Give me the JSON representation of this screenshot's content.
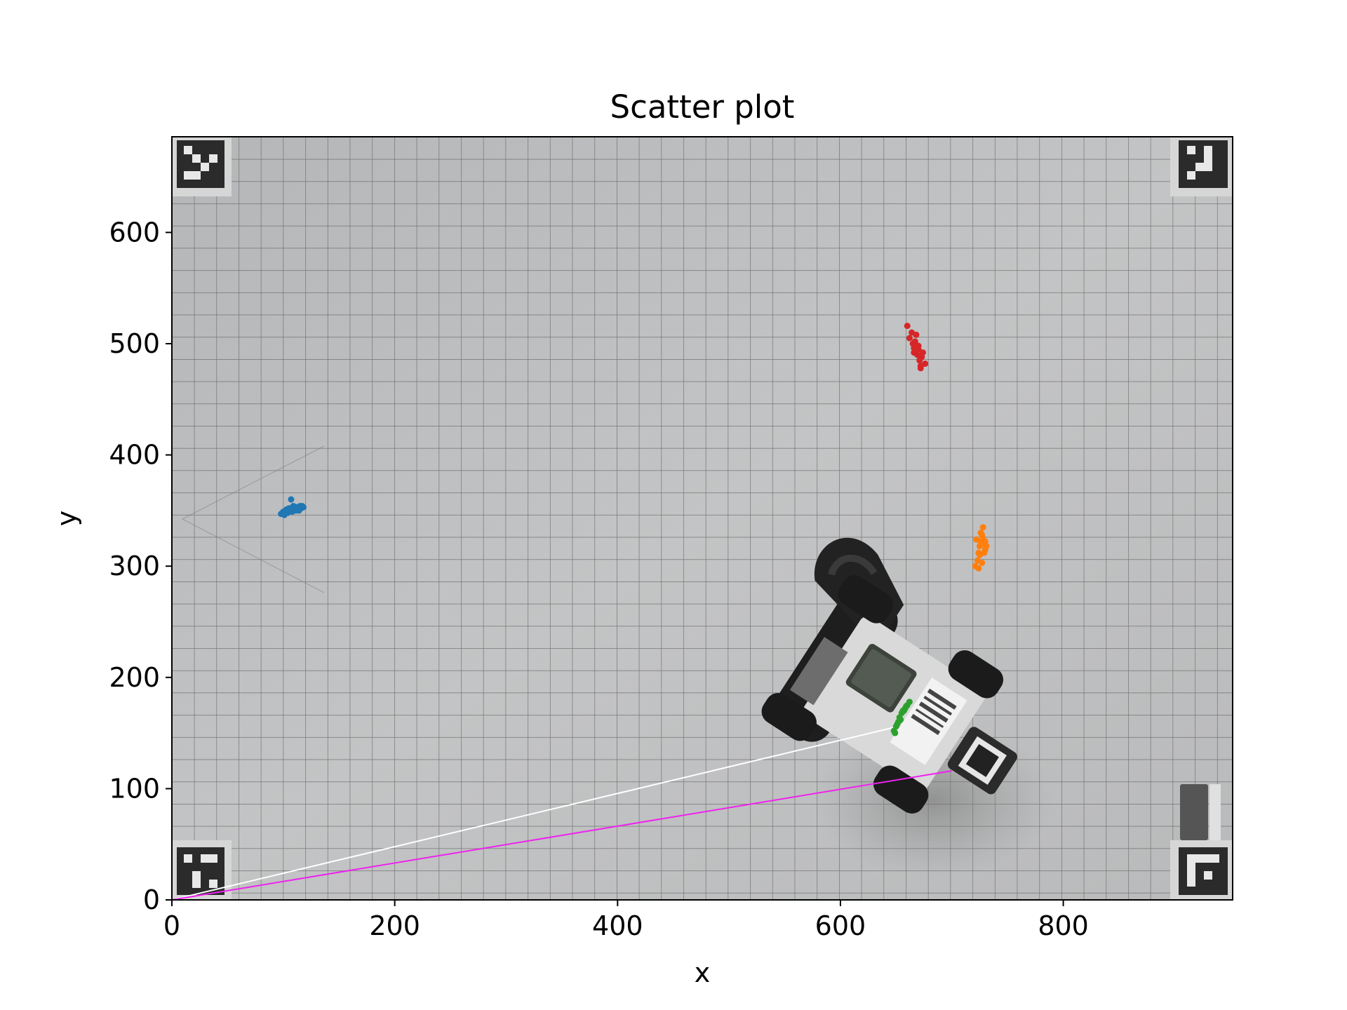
{
  "chart_data": {
    "type": "scatter",
    "title": "Scatter plot",
    "xlabel": "x",
    "ylabel": "y",
    "xlim": [
      0,
      952
    ],
    "ylim": [
      0,
      686
    ],
    "x_ticks": [
      0,
      200,
      400,
      600,
      800
    ],
    "y_ticks": [
      0,
      100,
      200,
      300,
      400,
      500,
      600
    ],
    "background": "photograph of a grid-paper floor with a LEGO EV3 robot and four fiducial markers",
    "series": [
      {
        "color": "#1f77b4",
        "points": [
          [
            98,
            347
          ],
          [
            100,
            349
          ],
          [
            102,
            350
          ],
          [
            104,
            348
          ],
          [
            105,
            352
          ],
          [
            106,
            351
          ],
          [
            108,
            349
          ],
          [
            109,
            354
          ],
          [
            110,
            352
          ],
          [
            111,
            350
          ],
          [
            112,
            353
          ],
          [
            113,
            351
          ],
          [
            115,
            354
          ],
          [
            116,
            352
          ],
          [
            118,
            353
          ],
          [
            107,
            360
          ],
          [
            101,
            346
          ],
          [
            103,
            351
          ],
          [
            114,
            350
          ],
          [
            117,
            354
          ]
        ]
      },
      {
        "color": "#ff7f0e",
        "points": [
          [
            721,
            300
          ],
          [
            723,
            305
          ],
          [
            724,
            312
          ],
          [
            725,
            318
          ],
          [
            726,
            322
          ],
          [
            727,
            328
          ],
          [
            728,
            335
          ],
          [
            729,
            320
          ],
          [
            730,
            315
          ],
          [
            731,
            318
          ],
          [
            725,
            310
          ],
          [
            727,
            303
          ],
          [
            722,
            324
          ],
          [
            726,
            330
          ],
          [
            729,
            312
          ],
          [
            724,
            298
          ],
          [
            728,
            325
          ],
          [
            730,
            322
          ]
        ]
      },
      {
        "color": "#2ca02c",
        "points": [
          [
            648,
            152
          ],
          [
            650,
            156
          ],
          [
            652,
            160
          ],
          [
            653,
            164
          ],
          [
            655,
            168
          ],
          [
            656,
            170
          ],
          [
            658,
            172
          ],
          [
            660,
            175
          ],
          [
            662,
            178
          ],
          [
            651,
            158
          ],
          [
            654,
            162
          ],
          [
            657,
            170
          ],
          [
            649,
            150
          ],
          [
            659,
            174
          ]
        ]
      },
      {
        "color": "#d62728",
        "points": [
          [
            660,
            516
          ],
          [
            662,
            505
          ],
          [
            664,
            510
          ],
          [
            665,
            500
          ],
          [
            666,
            496
          ],
          [
            667,
            502
          ],
          [
            668,
            494
          ],
          [
            669,
            490
          ],
          [
            670,
            498
          ],
          [
            671,
            485
          ],
          [
            672,
            480
          ],
          [
            673,
            488
          ],
          [
            674,
            492
          ],
          [
            676,
            482
          ],
          [
            668,
            508
          ],
          [
            670,
            495
          ],
          [
            666,
            492
          ],
          [
            672,
            478
          ]
        ]
      }
    ],
    "lines": [
      {
        "color": "#ffffff",
        "from": [
          0,
          0
        ],
        "to": [
          648,
          155
        ]
      },
      {
        "color": "#ee22ee",
        "from": [
          0,
          0
        ],
        "to": [
          700,
          116
        ]
      }
    ]
  }
}
